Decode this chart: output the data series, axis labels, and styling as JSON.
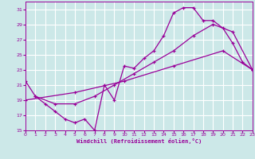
{
  "xlabel": "Windchill (Refroidissement éolien,°C)",
  "xlim": [
    0,
    23
  ],
  "ylim": [
    15,
    32
  ],
  "yticks": [
    15,
    17,
    19,
    21,
    23,
    25,
    27,
    29,
    31
  ],
  "xticks": [
    0,
    1,
    2,
    3,
    4,
    5,
    6,
    7,
    8,
    9,
    10,
    11,
    12,
    13,
    14,
    15,
    16,
    17,
    18,
    19,
    20,
    21,
    22,
    23
  ],
  "bg_color": "#cce8e8",
  "line_color": "#990099",
  "grid_color": "#ffffff",
  "line1": {
    "x": [
      0,
      1,
      2,
      3,
      4,
      5,
      6,
      7,
      8,
      9,
      10,
      11,
      12,
      13,
      14,
      15,
      16,
      17,
      18,
      19,
      20,
      21,
      22,
      23
    ],
    "y": [
      21.5,
      19.5,
      18.5,
      17.5,
      16.5,
      16.0,
      16.5,
      15.0,
      21.0,
      19.0,
      23.5,
      23.2,
      24.5,
      25.5,
      27.5,
      30.5,
      31.2,
      31.2,
      29.5,
      29.5,
      28.5,
      26.5,
      24.0,
      23.0
    ]
  },
  "line2": {
    "x": [
      1,
      3,
      5,
      7,
      9,
      11,
      13,
      15,
      17,
      19,
      21,
      23
    ],
    "y": [
      19.5,
      18.5,
      18.5,
      19.5,
      21.0,
      22.5,
      24.0,
      25.5,
      27.5,
      29.0,
      28.0,
      23.0
    ]
  },
  "line3": {
    "x": [
      0,
      5,
      10,
      15,
      20,
      23
    ],
    "y": [
      19.0,
      20.0,
      21.5,
      23.5,
      25.5,
      23.0
    ]
  }
}
